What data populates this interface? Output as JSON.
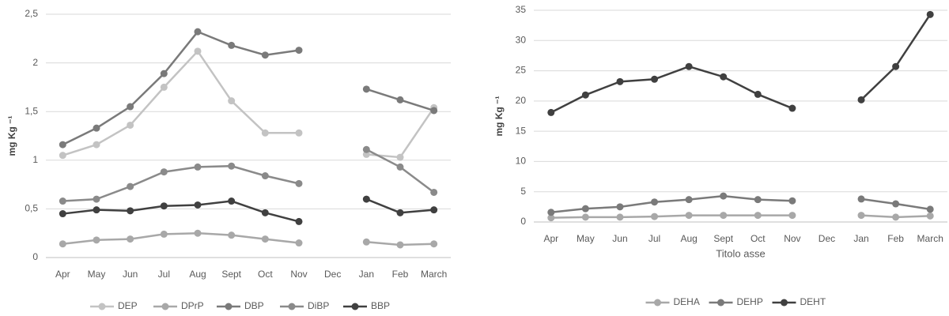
{
  "chart_data": [
    {
      "type": "line",
      "y_label": "mg Kg ⁻¹",
      "categories": [
        "Apr",
        "May",
        "Jun",
        "Jul",
        "Aug",
        "Sept",
        "Oct",
        "Nov",
        "Dec",
        "Jan",
        "Feb",
        "March"
      ],
      "ylim": [
        0,
        2.5
      ],
      "yticks": [
        0,
        {
          "value": 0.5,
          "label": "0,5"
        },
        1,
        {
          "value": 1.5,
          "label": "1,5"
        },
        2,
        {
          "value": 2.5,
          "label": "2,5"
        }
      ],
      "grid": true,
      "legend": "bottom",
      "series": [
        {
          "name": "DEP",
          "color": "#c3c3c3",
          "values": [
            1.05,
            1.16,
            1.36,
            1.75,
            2.12,
            1.61,
            1.28,
            1.28,
            null,
            1.06,
            1.03,
            1.54
          ]
        },
        {
          "name": "DPrP",
          "color": "#a8a8a8",
          "values": [
            0.14,
            0.18,
            0.19,
            0.24,
            0.25,
            0.23,
            0.19,
            0.15,
            null,
            0.16,
            0.13,
            0.14
          ]
        },
        {
          "name": "DBP",
          "color": "#7a7a7a",
          "values": [
            1.16,
            1.33,
            1.55,
            1.89,
            2.32,
            2.18,
            2.08,
            2.13,
            null,
            1.73,
            1.62,
            1.51
          ]
        },
        {
          "name": "DiBP",
          "color": "#8a8a8a",
          "values": [
            0.58,
            0.6,
            0.73,
            0.88,
            0.93,
            0.94,
            0.84,
            0.76,
            null,
            1.11,
            0.93,
            0.67
          ]
        },
        {
          "name": "BBP",
          "color": "#404040",
          "values": [
            0.45,
            0.49,
            0.48,
            0.53,
            0.54,
            0.58,
            0.46,
            0.37,
            null,
            0.6,
            0.46,
            0.49
          ]
        }
      ]
    },
    {
      "type": "line",
      "y_label": "mg Kg ⁻¹",
      "x_label": "Titolo asse",
      "categories": [
        "Apr",
        "May",
        "Jun",
        "Jul",
        "Aug",
        "Sept",
        "Oct",
        "Nov",
        "Dec",
        "Jan",
        "Feb",
        "March"
      ],
      "ylim": [
        0,
        35
      ],
      "yticks": [
        0,
        5,
        10,
        15,
        20,
        25,
        30,
        35
      ],
      "grid": true,
      "legend": "bottom",
      "series": [
        {
          "name": "DEHA",
          "color": "#a8a8a8",
          "values": [
            0.7,
            0.8,
            0.8,
            0.9,
            1.1,
            1.1,
            1.1,
            1.1,
            null,
            1.1,
            0.8,
            1.0
          ]
        },
        {
          "name": "DEHP",
          "color": "#7a7a7a",
          "values": [
            1.6,
            2.2,
            2.5,
            3.3,
            3.7,
            4.3,
            3.7,
            3.5,
            null,
            3.8,
            3.0,
            2.1
          ]
        },
        {
          "name": "DEHT",
          "color": "#404040",
          "values": [
            18.1,
            21.0,
            23.2,
            23.6,
            25.7,
            24.0,
            21.1,
            18.8,
            null,
            20.2,
            25.7,
            34.3
          ]
        }
      ]
    }
  ]
}
